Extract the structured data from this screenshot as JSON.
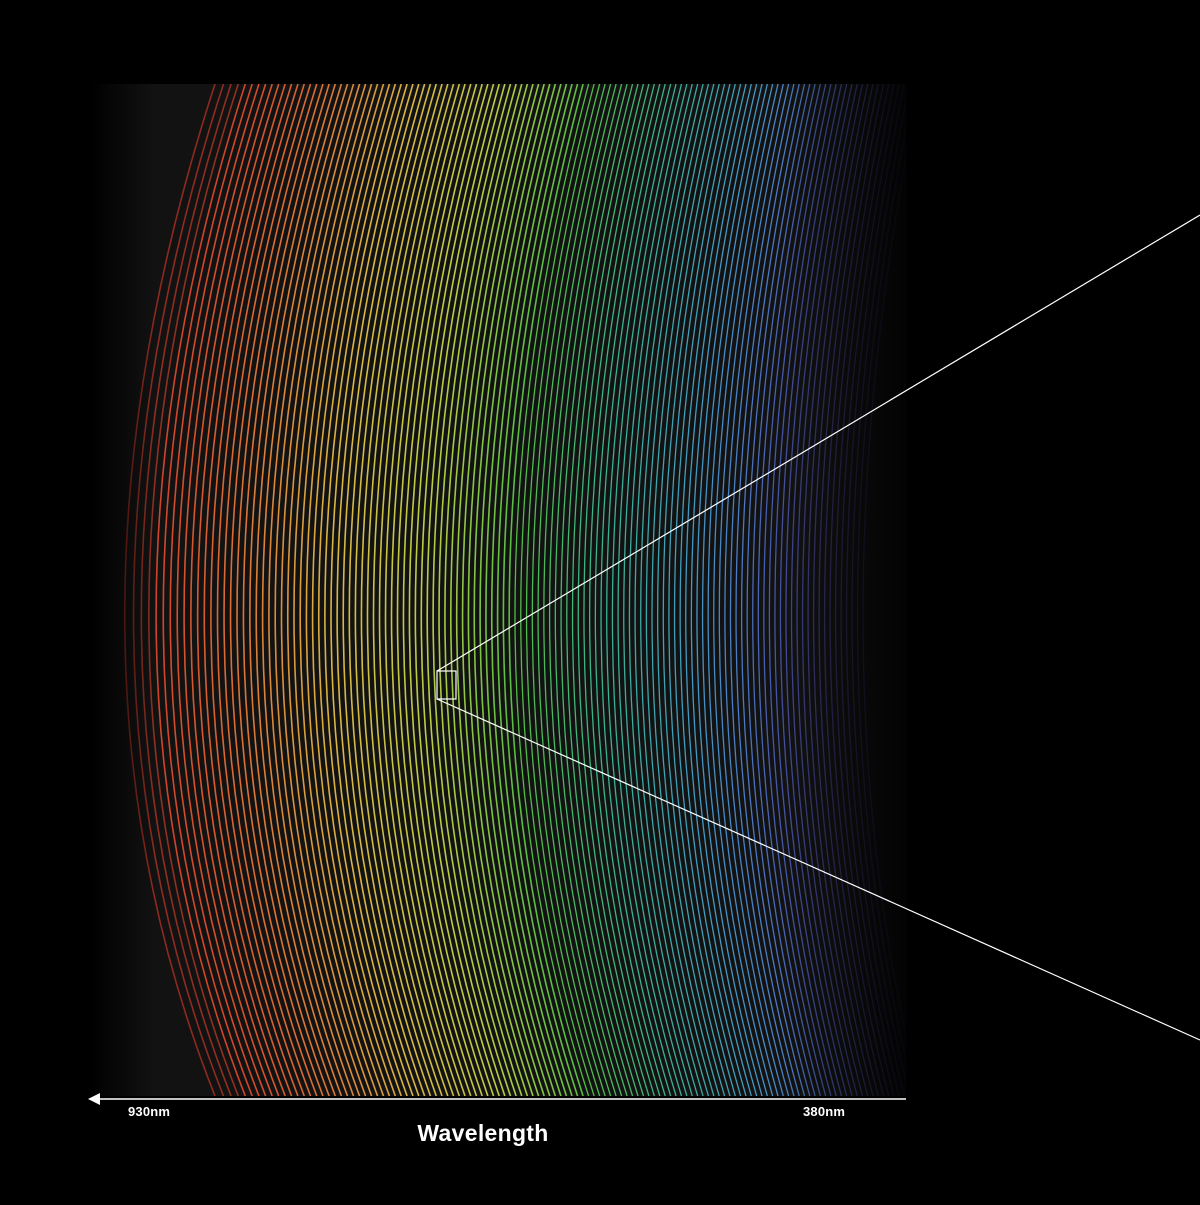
{
  "figure": {
    "axis": {
      "label": "Wavelength",
      "left_tick": "930nm",
      "right_tick": "380nm",
      "arrow_direction": "left",
      "color": "#ffffff"
    },
    "spectrum": {
      "description_colors": [
        "#e03a2a",
        "#f07a3a",
        "#f0c84a",
        "#cfe24a",
        "#5ccf4a",
        "#3ec4a0",
        "#4aa8d8",
        "#5a6ad8",
        "#5a40a8"
      ],
      "background": "#121212"
    },
    "callout": {
      "box_color": "#ffffff",
      "line_color": "#ffffff"
    }
  }
}
